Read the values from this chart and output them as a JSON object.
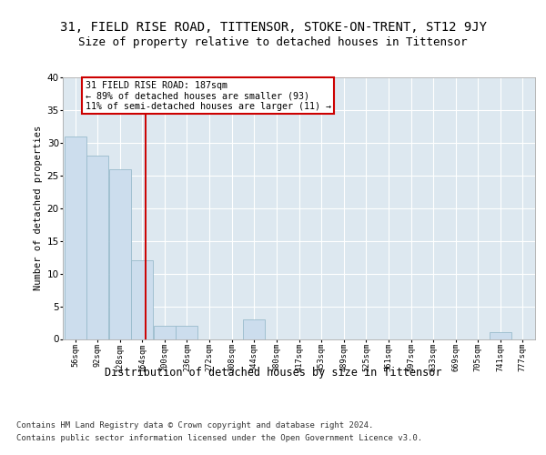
{
  "title": "31, FIELD RISE ROAD, TITTENSOR, STOKE-ON-TRENT, ST12 9JY",
  "subtitle": "Size of property relative to detached houses in Tittensor",
  "xlabel": "Distribution of detached houses by size in Tittensor",
  "ylabel": "Number of detached properties",
  "bin_labels": [
    "56sqm",
    "92sqm",
    "128sqm",
    "164sqm",
    "200sqm",
    "236sqm",
    "272sqm",
    "308sqm",
    "344sqm",
    "380sqm",
    "417sqm",
    "453sqm",
    "489sqm",
    "525sqm",
    "561sqm",
    "597sqm",
    "633sqm",
    "669sqm",
    "705sqm",
    "741sqm",
    "777sqm"
  ],
  "bar_values": [
    31,
    28,
    26,
    12,
    2,
    2,
    0,
    0,
    3,
    0,
    0,
    0,
    0,
    0,
    0,
    0,
    0,
    0,
    0,
    1,
    0
  ],
  "bin_edges": [
    56,
    92,
    128,
    164,
    200,
    236,
    272,
    308,
    344,
    380,
    417,
    453,
    489,
    525,
    561,
    597,
    633,
    669,
    705,
    741,
    777,
    813
  ],
  "bar_color": "#ccdded",
  "bar_edge_color": "#99bbcc",
  "vline_x": 187,
  "vline_color": "#cc0000",
  "annotation_line1": "31 FIELD RISE ROAD: 187sqm",
  "annotation_line2": "← 89% of detached houses are smaller (93)",
  "annotation_line3": "11% of semi-detached houses are larger (11) →",
  "annotation_box_color": "#ffffff",
  "annotation_box_edge": "#cc0000",
  "ylim": [
    0,
    40
  ],
  "yticks": [
    0,
    5,
    10,
    15,
    20,
    25,
    30,
    35,
    40
  ],
  "figure_bg": "#ffffff",
  "plot_bg_color": "#dde8f0",
  "title_fontsize": 10,
  "subtitle_fontsize": 9,
  "xlabel_fontsize": 8.5,
  "ylabel_fontsize": 7.5,
  "footer_fontsize": 6.5,
  "footer_text_line1": "Contains HM Land Registry data © Crown copyright and database right 2024.",
  "footer_text_line2": "Contains public sector information licensed under the Open Government Licence v3.0."
}
